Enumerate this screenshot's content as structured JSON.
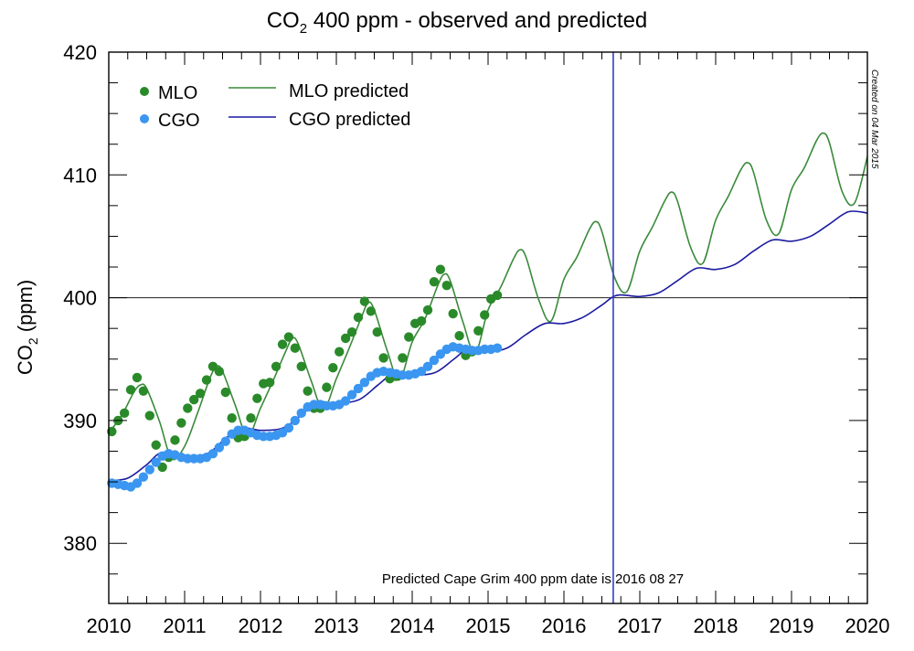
{
  "chart_data": {
    "type": "line",
    "title_parts": {
      "prefix": "CO",
      "sub": "2",
      "suffix": " 400 ppm - observed and predicted"
    },
    "xlabel": "",
    "ylabel_parts": {
      "prefix": "CO",
      "sub": "2",
      "suffix": " (ppm)"
    },
    "xlim": [
      2010,
      2020
    ],
    "ylim": [
      375.1,
      420
    ],
    "x_ticks": [
      2010,
      2011,
      2012,
      2013,
      2014,
      2015,
      2016,
      2017,
      2018,
      2019,
      2020
    ],
    "x_tick_labels": [
      "2010",
      "2011",
      "2012",
      "2013",
      "2014",
      "2015",
      "2016",
      "2017",
      "2018",
      "2019",
      "2020"
    ],
    "x_minor_step": 0.25,
    "y_ticks": [
      380,
      390,
      400,
      410,
      420
    ],
    "y_tick_labels": [
      "380",
      "390",
      "400",
      "410",
      "420"
    ],
    "y_minor_step": 2.5,
    "grid": false,
    "reference_line_y": 400,
    "vertical_marker_x": 2016.65,
    "legend": {
      "placement": "top-left",
      "entries": [
        {
          "label": "MLO",
          "kind": "marker",
          "color": "#2a8a2a"
        },
        {
          "label": "CGO",
          "kind": "marker",
          "color": "#3a96f0"
        },
        {
          "label": "MLO predicted",
          "kind": "line",
          "color": "#3a8a3a"
        },
        {
          "label": "CGO predicted",
          "kind": "line",
          "color": "#1a1aa0"
        }
      ]
    },
    "annotation": "Predicted Cape Grim 400 ppm date is 2016 08 27",
    "created_note": "Created on 04 Mar 2015",
    "series": [
      {
        "name": "MLO",
        "kind": "scatter",
        "color": "#2a8a2a",
        "start_year": 2010.0,
        "step": 0.0833,
        "values": [
          389.1,
          390.0,
          390.6,
          392.5,
          393.5,
          392.4,
          390.4,
          388.0,
          386.2,
          387.0,
          388.4,
          389.8,
          391.0,
          391.7,
          392.2,
          393.3,
          394.4,
          394.0,
          392.3,
          390.2,
          388.6,
          388.7,
          390.2,
          391.8,
          393.0,
          393.1,
          394.4,
          396.2,
          396.8,
          395.9,
          394.4,
          392.4,
          391.0,
          391.0,
          392.7,
          394.3,
          395.6,
          396.7,
          397.2,
          398.4,
          399.7,
          398.9,
          397.2,
          395.1,
          393.4,
          393.6,
          395.1,
          396.8,
          397.9,
          398.1,
          399.0,
          401.3,
          402.3,
          401.0,
          398.7,
          396.9,
          395.3,
          395.6,
          397.3,
          398.6,
          399.9,
          400.2
        ]
      },
      {
        "name": "CGO",
        "kind": "scatter",
        "color": "#3a96f0",
        "start_year": 2010.0,
        "step": 0.0833,
        "values": [
          384.9,
          384.8,
          384.7,
          384.6,
          384.9,
          385.4,
          386.0,
          386.6,
          387.1,
          387.3,
          387.2,
          387.0,
          386.9,
          386.9,
          386.9,
          387.0,
          387.3,
          387.8,
          388.3,
          388.9,
          389.2,
          389.2,
          389.0,
          388.8,
          388.7,
          388.7,
          388.8,
          389.0,
          389.4,
          390.0,
          390.6,
          391.1,
          391.3,
          391.3,
          391.2,
          391.2,
          391.3,
          391.6,
          392.1,
          392.6,
          393.1,
          393.6,
          393.9,
          394.0,
          393.9,
          393.8,
          393.7,
          393.7,
          393.8,
          394.0,
          394.4,
          394.9,
          395.4,
          395.8,
          396.0,
          395.9,
          395.8,
          395.7,
          395.7,
          395.8,
          395.8,
          395.9
        ]
      },
      {
        "name": "MLO predicted",
        "kind": "line",
        "color": "#3a8a3a",
        "x": [
          2010.0,
          2010.17,
          2010.33,
          2010.42,
          2010.5,
          2010.67,
          2010.83,
          2011.0,
          2011.17,
          2011.33,
          2011.42,
          2011.5,
          2011.67,
          2011.83,
          2012.0,
          2012.17,
          2012.33,
          2012.42,
          2012.5,
          2012.67,
          2012.83,
          2013.0,
          2013.17,
          2013.33,
          2013.42,
          2013.5,
          2013.67,
          2013.83,
          2014.0,
          2014.17,
          2014.33,
          2014.42,
          2014.5,
          2014.67,
          2014.83,
          2015.0,
          2015.17,
          2015.33,
          2015.42,
          2015.5,
          2015.67,
          2015.83,
          2016.0,
          2016.17,
          2016.33,
          2016.42,
          2016.5,
          2016.67,
          2016.83,
          2017.0,
          2017.17,
          2017.33,
          2017.42,
          2017.5,
          2017.67,
          2017.83,
          2018.0,
          2018.17,
          2018.33,
          2018.42,
          2018.5,
          2018.67,
          2018.83,
          2019.0,
          2019.17,
          2019.33,
          2019.42,
          2019.5,
          2019.67,
          2019.83,
          2020.0
        ],
        "values": [
          389.0,
          390.4,
          392.3,
          392.9,
          392.6,
          389.9,
          386.9,
          387.9,
          390.6,
          393.4,
          394.4,
          394.0,
          391.2,
          388.7,
          391.0,
          393.3,
          395.6,
          396.7,
          396.2,
          393.2,
          390.9,
          393.4,
          395.9,
          398.4,
          399.6,
          399.0,
          395.7,
          393.3,
          396.4,
          398.3,
          400.9,
          401.9,
          401.4,
          398.0,
          395.5,
          399.0,
          400.9,
          403.1,
          403.9,
          403.3,
          399.8,
          398.1,
          401.5,
          403.3,
          405.5,
          406.2,
          405.4,
          401.6,
          400.5,
          403.8,
          405.8,
          407.9,
          408.6,
          407.8,
          404.1,
          402.8,
          406.3,
          408.3,
          410.4,
          411.0,
          410.2,
          406.3,
          405.2,
          408.8,
          410.6,
          412.8,
          413.4,
          412.6,
          408.6,
          407.7,
          411.5
        ]
      },
      {
        "name": "CGO predicted",
        "kind": "line",
        "color": "#1a1aa0",
        "x": [
          2010.0,
          2010.25,
          2010.5,
          2010.7,
          2011.0,
          2011.3,
          2011.55,
          2011.75,
          2012.0,
          2012.3,
          2012.55,
          2012.75,
          2013.0,
          2013.3,
          2013.55,
          2013.75,
          2014.0,
          2014.3,
          2014.55,
          2014.75,
          2015.0,
          2015.25,
          2015.5,
          2015.75,
          2016.0,
          2016.25,
          2016.5,
          2016.7,
          2017.0,
          2017.25,
          2017.5,
          2017.75,
          2018.0,
          2018.25,
          2018.5,
          2018.75,
          2019.0,
          2019.25,
          2019.5,
          2019.75,
          2020.0
        ],
        "values": [
          385.1,
          385.3,
          386.4,
          387.4,
          387.1,
          387.3,
          388.6,
          389.4,
          389.2,
          389.4,
          390.5,
          391.5,
          391.4,
          391.7,
          392.9,
          393.8,
          393.7,
          393.9,
          395.0,
          395.9,
          395.6,
          395.9,
          397.0,
          397.9,
          397.9,
          398.4,
          399.4,
          400.2,
          400.1,
          400.4,
          401.4,
          402.4,
          402.3,
          402.7,
          403.8,
          404.7,
          404.6,
          405.0,
          406.0,
          407.0,
          406.9
        ]
      }
    ]
  }
}
